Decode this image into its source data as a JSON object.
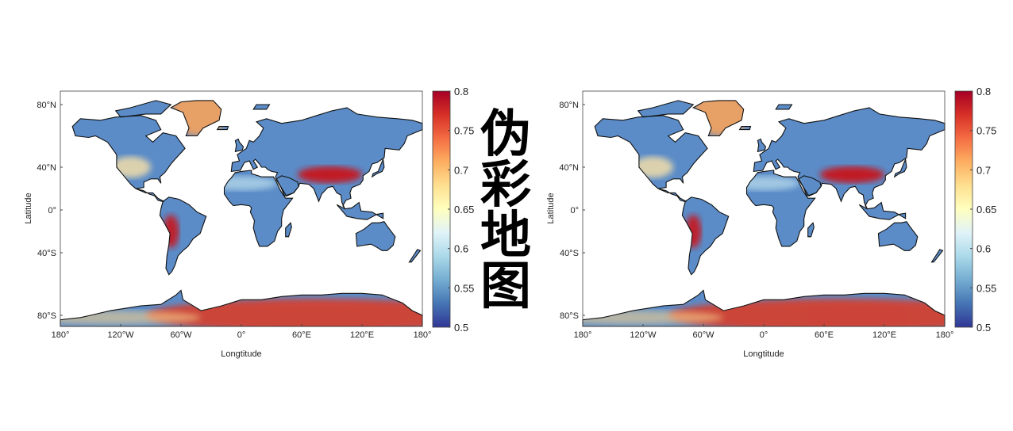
{
  "title_chars": [
    "伪",
    "彩",
    "地",
    "图"
  ],
  "panels": [
    {
      "id": "left",
      "xlabel": "Longtitude",
      "ylabel": "Latitude",
      "x_ticks": [
        "180°",
        "120°W",
        "60°W",
        "0°",
        "60°E",
        "120°E",
        "180°"
      ],
      "y_ticks": [
        "80°N",
        "40°N",
        "0°",
        "40°S",
        "80°S"
      ],
      "colorbar_ticks": [
        "0.8",
        "0.75",
        "0.7",
        "0.65",
        "0.6",
        "0.55",
        "0.5"
      ]
    },
    {
      "id": "right",
      "xlabel": "Longtitude",
      "ylabel": "Latitude",
      "x_ticks": [
        "180°",
        "120°W",
        "60°W",
        "0°",
        "60°E",
        "120°E",
        "180°"
      ],
      "y_ticks": [
        "80°N",
        "40°N",
        "0°",
        "40°S",
        "80°S"
      ],
      "colorbar_ticks": [
        "0.8",
        "0.75",
        "0.7",
        "0.65",
        "0.6",
        "0.55",
        "0.5"
      ]
    }
  ],
  "colorbar": {
    "min": 0.5,
    "max": 0.8,
    "colors": [
      "#313695",
      "#4575b4",
      "#74add1",
      "#abd9e9",
      "#e0f3f8",
      "#ffffbf",
      "#fee090",
      "#fdae61",
      "#f46d43",
      "#d73027",
      "#a50026"
    ]
  },
  "colors": {
    "land_base": "#5b8cc8",
    "ocean": "#ffffff",
    "coast": "#111111"
  }
}
